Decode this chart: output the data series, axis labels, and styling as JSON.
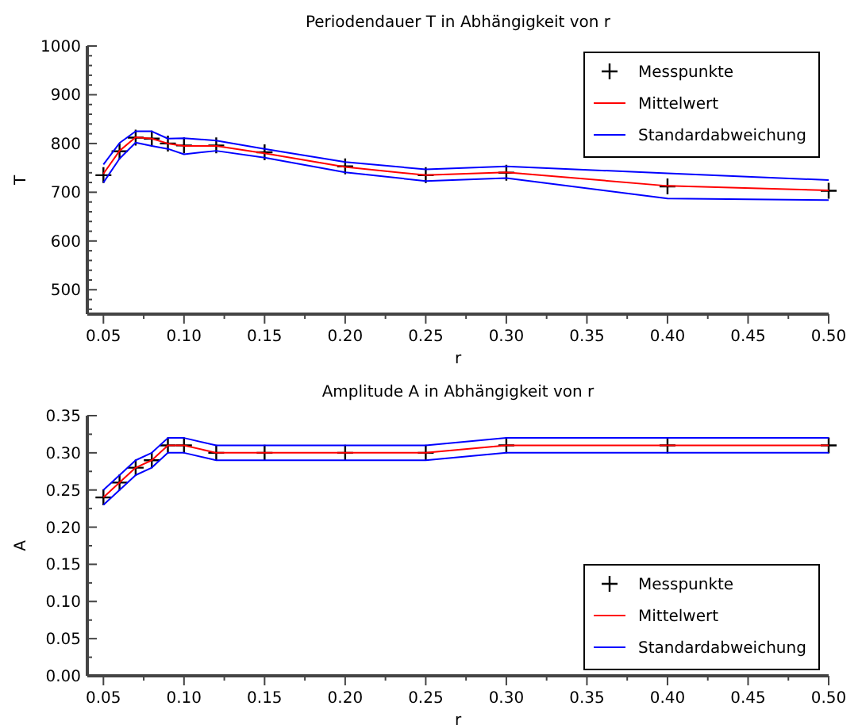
{
  "chart_data": [
    {
      "type": "line",
      "title": "Periodendauer T in Abhängigkeit von r",
      "xlabel": "r",
      "ylabel": "T",
      "x": [
        0.05,
        0.06,
        0.07,
        0.08,
        0.09,
        0.1,
        0.12,
        0.15,
        0.2,
        0.25,
        0.3,
        0.4,
        0.5
      ],
      "series": [
        {
          "name": "Messpunkte",
          "type": "scatter",
          "color": "#000000",
          "marker": "cross",
          "values": [
            735,
            784,
            812,
            810,
            800,
            796,
            796,
            782,
            753,
            735,
            740,
            712,
            703
          ]
        },
        {
          "name": "Mittelwert",
          "color": "#ff0000",
          "values": [
            738,
            785,
            813,
            810,
            800,
            795,
            795,
            780,
            752,
            735,
            741,
            713,
            704
          ]
        },
        {
          "name": "Standardabweichung",
          "color": "#0000ff",
          "values": [
            757,
            801,
            825,
            825,
            810,
            811,
            806,
            789,
            762,
            747,
            753,
            739,
            725
          ]
        },
        {
          "color": "#0000ff",
          "values": [
            720,
            769,
            802,
            795,
            789,
            778,
            785,
            771,
            741,
            723,
            729,
            687,
            684
          ]
        }
      ],
      "xlim": [
        0.04,
        0.5
      ],
      "xticks": [
        0.05,
        {
          "value": 0.075,
          "label": null
        },
        "0.10",
        {
          "value": 0.125,
          "label": null
        },
        0.15,
        {
          "value": 0.175,
          "label": null
        },
        "0.20",
        {
          "value": 0.225,
          "label": null
        },
        0.25,
        {
          "value": 0.275,
          "label": null
        },
        "0.30",
        {
          "value": 0.325,
          "label": null
        },
        0.35,
        {
          "value": 0.375,
          "label": null
        },
        "0.40",
        {
          "value": 0.425,
          "label": null
        },
        0.45,
        {
          "value": 0.475,
          "label": null
        },
        "0.50"
      ],
      "ylim": [
        450,
        1000
      ],
      "yticks": [
        {
          "value": 460,
          "label": null
        },
        {
          "value": 480,
          "label": null
        },
        500,
        {
          "value": 520,
          "label": null
        },
        {
          "value": 540,
          "label": null
        },
        {
          "value": 560,
          "label": null
        },
        {
          "value": 580,
          "label": null
        },
        600,
        {
          "value": 620,
          "label": null
        },
        {
          "value": 640,
          "label": null
        },
        {
          "value": 660,
          "label": null
        },
        {
          "value": 680,
          "label": null
        },
        700,
        {
          "value": 720,
          "label": null
        },
        {
          "value": 740,
          "label": null
        },
        {
          "value": 760,
          "label": null
        },
        {
          "value": 780,
          "label": null
        },
        800,
        {
          "value": 820,
          "label": null
        },
        {
          "value": 840,
          "label": null
        },
        {
          "value": 860,
          "label": null
        },
        {
          "value": 880,
          "label": null
        },
        900,
        {
          "value": 920,
          "label": null
        },
        {
          "value": 940,
          "label": null
        },
        {
          "value": 960,
          "label": null
        },
        {
          "value": 980,
          "label": null
        },
        1000
      ],
      "legend": "top right",
      "grid": false
    },
    {
      "type": "line",
      "title": "Amplitude A in Abhängigkeit von r",
      "xlabel": "r",
      "ylabel": "A",
      "x": [
        0.05,
        0.06,
        0.07,
        0.08,
        0.09,
        0.1,
        0.12,
        0.15,
        0.2,
        0.25,
        0.3,
        0.4,
        0.5
      ],
      "series": [
        {
          "name": "Messpunkte",
          "type": "scatter",
          "color": "#000000",
          "marker": "cross",
          "values": [
            0.24,
            0.26,
            0.28,
            0.29,
            0.31,
            0.31,
            0.3,
            0.3,
            0.3,
            0.3,
            0.31,
            0.31,
            0.31
          ]
        },
        {
          "name": "Mittelwert",
          "color": "#ff0000",
          "values": [
            0.24,
            0.26,
            0.28,
            0.29,
            0.31,
            0.31,
            0.3,
            0.3,
            0.3,
            0.3,
            0.31,
            0.31,
            0.31
          ]
        },
        {
          "name": "Standardabweichung",
          "color": "#0000ff",
          "values": [
            0.25,
            0.27,
            0.29,
            0.3,
            0.32,
            0.32,
            0.31,
            0.31,
            0.31,
            0.31,
            0.32,
            0.32,
            0.32
          ]
        },
        {
          "color": "#0000ff",
          "values": [
            0.23,
            0.25,
            0.27,
            0.28,
            0.3,
            0.3,
            0.29,
            0.29,
            0.29,
            0.29,
            0.3,
            0.3,
            0.3
          ]
        }
      ],
      "xlim": [
        0.04,
        0.5
      ],
      "xticks": [
        0.05,
        {
          "value": 0.075,
          "label": null
        },
        "0.10",
        {
          "value": 0.125,
          "label": null
        },
        0.15,
        {
          "value": 0.175,
          "label": null
        },
        "0.20",
        {
          "value": 0.225,
          "label": null
        },
        0.25,
        {
          "value": 0.275,
          "label": null
        },
        "0.30",
        {
          "value": 0.325,
          "label": null
        },
        0.35,
        {
          "value": 0.375,
          "label": null
        },
        "0.40",
        {
          "value": 0.425,
          "label": null
        },
        0.45,
        {
          "value": 0.475,
          "label": null
        },
        "0.50"
      ],
      "ylim": [
        0,
        0.35
      ],
      "yticks": [
        "0.00",
        {
          "value": 0.025,
          "label": null
        },
        0.05,
        {
          "value": 0.075,
          "label": null
        },
        "0.10",
        {
          "value": 0.125,
          "label": null
        },
        0.15,
        {
          "value": 0.175,
          "label": null
        },
        "0.20",
        {
          "value": 0.225,
          "label": null
        },
        0.25,
        {
          "value": 0.275,
          "label": null
        },
        "0.30",
        {
          "value": 0.325,
          "label": null
        },
        0.35
      ],
      "legend": "bottom right",
      "grid": false
    }
  ]
}
